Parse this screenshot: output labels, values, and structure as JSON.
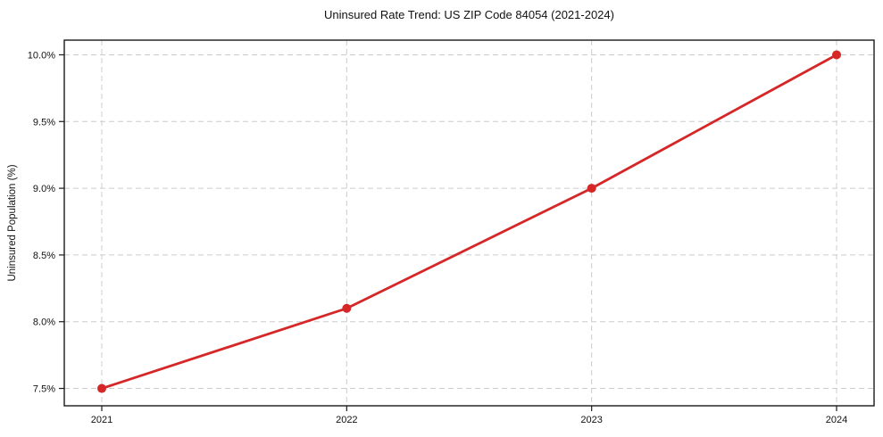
{
  "chart_data": {
    "type": "line",
    "title": "Uninsured Rate Trend: US ZIP Code 84054 (2021-2024)",
    "xlabel": "",
    "ylabel": "Uninsured Population (%)",
    "categories": [
      "2021",
      "2022",
      "2023",
      "2024"
    ],
    "series": [
      {
        "name": "Uninsured Population (%)",
        "values": [
          7.5,
          8.1,
          9.0,
          10.0
        ]
      }
    ],
    "y_ticks": [
      7.5,
      8.0,
      8.5,
      9.0,
      9.5,
      10.0
    ],
    "y_tick_labels": [
      "7.5%",
      "8.0%",
      "8.5%",
      "9.0%",
      "9.5%",
      "10.0%"
    ],
    "ylim": [
      7.37,
      10.11
    ],
    "grid": "both-dashed",
    "legend": "none",
    "colors": {
      "line": "#d62728",
      "marker": "#d62728",
      "grid": "#cccccc",
      "axis_border": "#1a1a1a",
      "tick": "#1a1a1a",
      "background": "#ffffff"
    }
  }
}
